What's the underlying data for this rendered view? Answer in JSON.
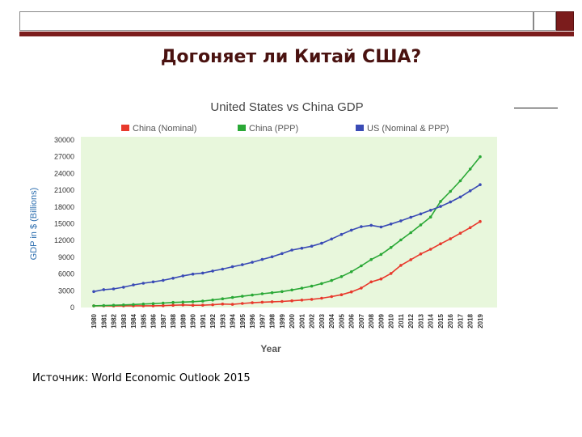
{
  "slide": {
    "title": "Догоняет ли Китай США?",
    "source": "Источник: World Economic Outlook 2015"
  },
  "chart_data": {
    "type": "line",
    "title": "United States vs China GDP",
    "xlabel": "Year",
    "ylabel": "GDP in $ (Billions)",
    "ylim": [
      0,
      30000
    ],
    "yticks": [
      0,
      3000,
      6000,
      9000,
      12000,
      15000,
      18000,
      21000,
      24000,
      27000,
      30000
    ],
    "ytick_labels": [
      "0",
      "3000",
      "6000",
      "9000",
      "12000",
      "15000",
      "18000",
      "21000",
      "24000",
      "27000",
      "30000"
    ],
    "grid": false,
    "legend_position": "top",
    "plot_background": "#e8f7dc",
    "x": [
      "1980",
      "1981",
      "1982",
      "1983",
      "1984",
      "1985",
      "1986",
      "1987",
      "1988",
      "1989",
      "1990",
      "1991",
      "1992",
      "1993",
      "1994",
      "1995",
      "1996",
      "1997",
      "1998",
      "1999",
      "2000",
      "2001",
      "2002",
      "2003",
      "2004",
      "2005",
      "2006",
      "2007",
      "2008",
      "2009",
      "2010",
      "2011",
      "2012",
      "2013",
      "2014",
      "2015",
      "2016",
      "2017",
      "2018",
      "2019"
    ],
    "series": [
      {
        "name": "China (Nominal)",
        "color": "#e8392c",
        "values": [
          300,
          290,
          280,
          300,
          310,
          310,
          300,
          330,
          410,
          460,
          400,
          420,
          490,
          620,
          560,
          730,
          860,
          960,
          1030,
          1090,
          1210,
          1340,
          1470,
          1660,
          1960,
          2290,
          2790,
          3490,
          4590,
          5110,
          6100,
          7550,
          8560,
          9590,
          10430,
          11400,
          12300,
          13300,
          14300,
          15400
        ]
      },
      {
        "name": "China (PPP)",
        "color": "#2aa836",
        "values": [
          300,
          350,
          400,
          460,
          540,
          630,
          700,
          800,
          910,
          970,
          1040,
          1150,
          1350,
          1570,
          1800,
          2010,
          2230,
          2460,
          2650,
          2860,
          3150,
          3470,
          3830,
          4290,
          4840,
          5530,
          6400,
          7460,
          8600,
          9510,
          10750,
          12100,
          13400,
          14800,
          16200,
          19000,
          20800,
          22700,
          24800,
          27000
        ]
      },
      {
        "name": "US (Nominal & PPP)",
        "color": "#3a4bb5",
        "values": [
          2860,
          3210,
          3340,
          3640,
          4040,
          4350,
          4590,
          4870,
          5250,
          5660,
          5980,
          6170,
          6540,
          6880,
          7310,
          7660,
          8100,
          8610,
          9090,
          9660,
          10290,
          10630,
          10980,
          11510,
          12270,
          13090,
          13860,
          14480,
          14720,
          14420,
          14960,
          15520,
          16160,
          16770,
          17420,
          18100,
          18900,
          19800,
          20900,
          22000
        ]
      }
    ]
  }
}
